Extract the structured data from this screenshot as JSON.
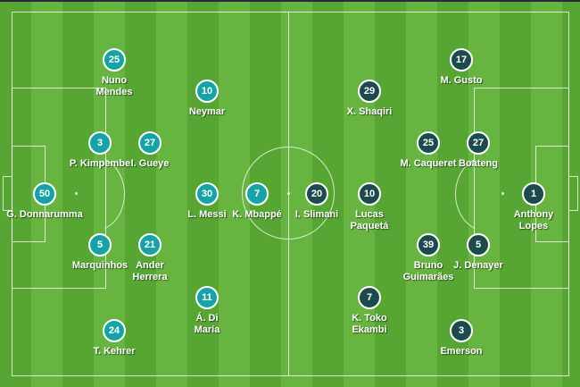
{
  "colors": {
    "home_team": "#17a3a6",
    "away_team": "#1d4b4d",
    "pitch_dark": "#57a532",
    "pitch_light": "#68b441"
  },
  "home": [
    {
      "number": "25",
      "name": "Nuno Mendes"
    },
    {
      "number": "10",
      "name": "Neymar"
    },
    {
      "number": "3",
      "name": "P. Kimpembe"
    },
    {
      "number": "27",
      "name": "I. Gueye"
    },
    {
      "number": "50",
      "name": "G. Donnarumma"
    },
    {
      "number": "30",
      "name": "L. Messi"
    },
    {
      "number": "7",
      "name": "K. Mbappé"
    },
    {
      "number": "5",
      "name": "Marquinhos"
    },
    {
      "number": "21",
      "name": "Ander Herrera"
    },
    {
      "number": "11",
      "name": "Á. Di María"
    },
    {
      "number": "24",
      "name": "T. Kehrer"
    }
  ],
  "away": [
    {
      "number": "17",
      "name": "M. Gusto"
    },
    {
      "number": "29",
      "name": "X. Shaqiri"
    },
    {
      "number": "25",
      "name": "M. Caqueret"
    },
    {
      "number": "27",
      "name": "Boateng"
    },
    {
      "number": "20",
      "name": "I. Slimani"
    },
    {
      "number": "10",
      "name": "Lucas Paquetá"
    },
    {
      "number": "1",
      "name": "Anthony Lopes"
    },
    {
      "number": "39",
      "name": "Bruno Guimarães"
    },
    {
      "number": "5",
      "name": "J. Denayer"
    },
    {
      "number": "7",
      "name": "K. Toko Ekambi"
    },
    {
      "number": "3",
      "name": "Emerson"
    }
  ]
}
